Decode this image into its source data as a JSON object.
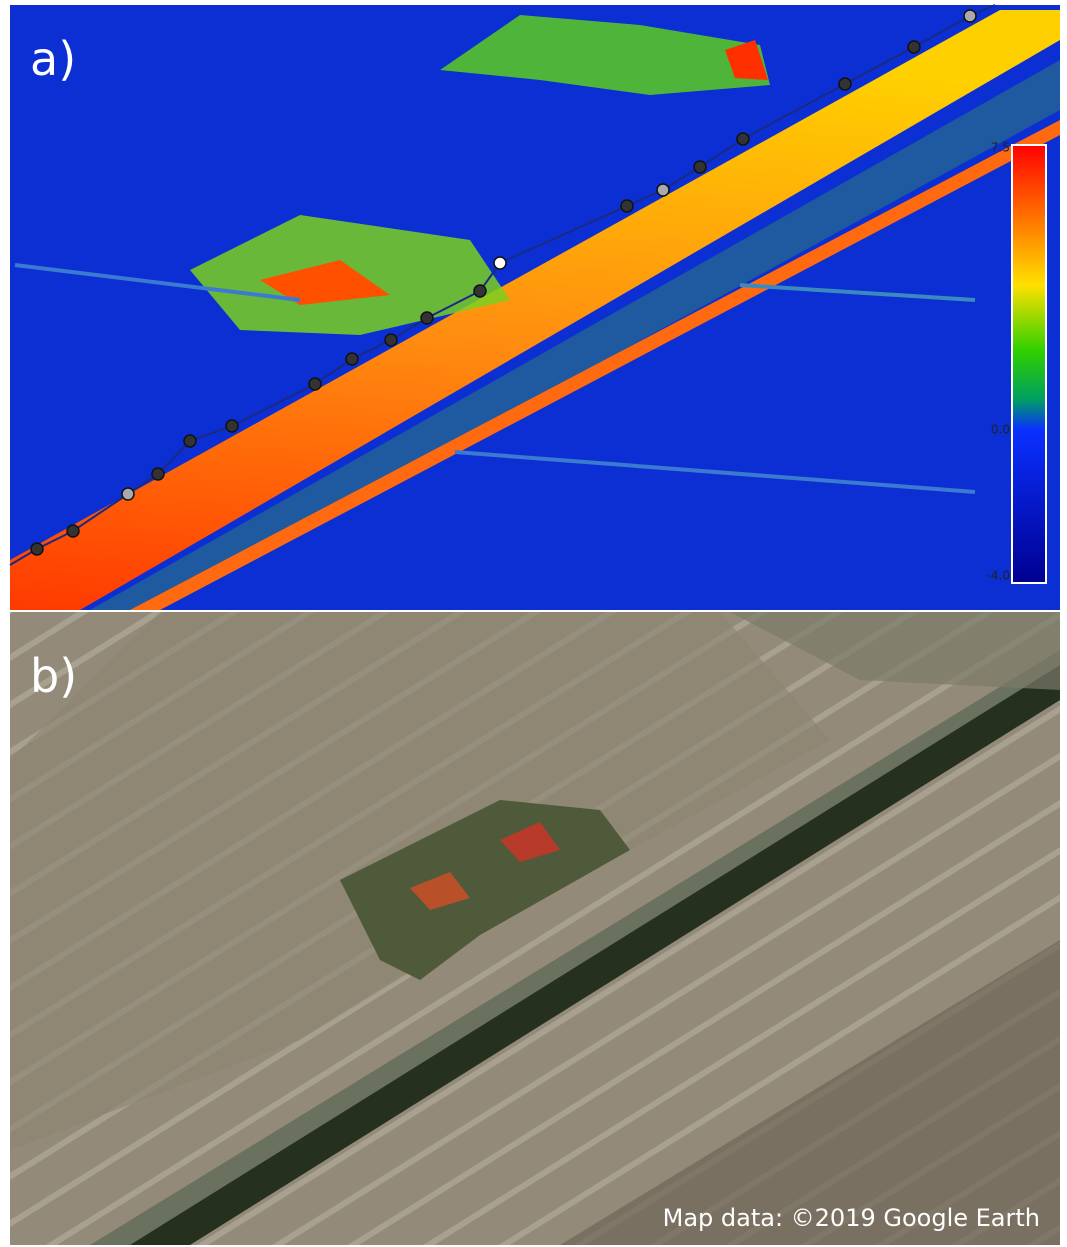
{
  "panel_a": {
    "label": "a)",
    "colorbar": {
      "ticks": [
        "7.5",
        "0.0",
        "-4.0"
      ]
    }
  },
  "panel_b": {
    "label": "b)",
    "attribution": "Map data: ©2019 Google Earth"
  }
}
